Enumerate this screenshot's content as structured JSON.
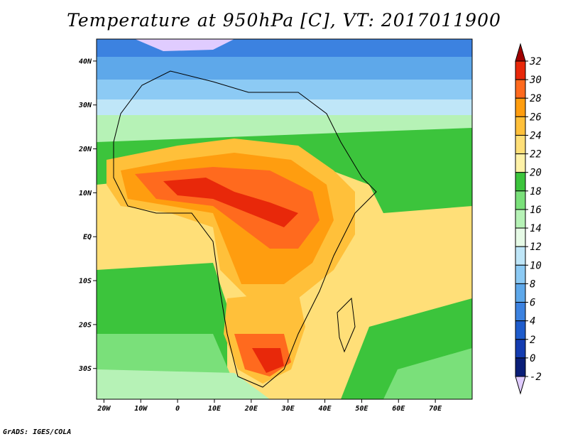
{
  "title": "Temperature at 950hPa [C], VT: 2017011900",
  "footer": "GrADS: IGES/COLA",
  "map": {
    "variable": "Temperature at 950hPa",
    "units": "C",
    "valid_time": "2017011900",
    "lon_range": [
      -22,
      80
    ],
    "lat_range": [
      -37,
      45
    ],
    "lat_labels": [
      "40N",
      "30N",
      "20N",
      "10N",
      "EQ",
      "10S",
      "20S",
      "30S"
    ],
    "lat_values": [
      40,
      30,
      20,
      10,
      0,
      -10,
      -20,
      -30
    ],
    "lon_labels": [
      "20W",
      "10W",
      "0",
      "10E",
      "20E",
      "30E",
      "40E",
      "50E",
      "60E",
      "70E"
    ],
    "lon_values": [
      -20,
      -10,
      0,
      10,
      20,
      30,
      40,
      50,
      60,
      70
    ]
  },
  "colorbar": {
    "levels": [
      "32",
      "30",
      "28",
      "26",
      "24",
      "22",
      "20",
      "18",
      "16",
      "14",
      "12",
      "10",
      "8",
      "6",
      "4",
      "2",
      "0",
      "-2"
    ],
    "colors": [
      "#a00000",
      "#e8280a",
      "#ff6a1e",
      "#ff9d0f",
      "#ffc03a",
      "#ffdf78",
      "#fff2a8",
      "#3cc43c",
      "#7ae07a",
      "#b6f2b6",
      "#e6fae6",
      "#bfe6f8",
      "#8ccaf4",
      "#5ea8ea",
      "#3c82e0",
      "#1e5ccc",
      "#143cb0",
      "#0a1e78",
      "#e0ccff"
    ]
  }
}
